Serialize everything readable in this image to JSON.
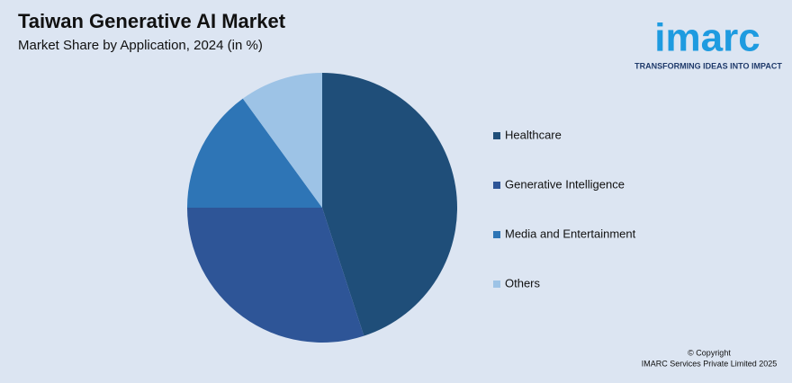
{
  "chart_data": {
    "type": "pie",
    "title": "Taiwan Generative AI Market",
    "subtitle": "Market Share by Application, 2024 (in %)",
    "categories": [
      "Healthcare",
      "Generative Intelligence",
      "Media and Entertainment",
      "Others"
    ],
    "values": [
      45,
      30,
      15,
      10
    ],
    "colors": [
      "#1f4e79",
      "#2e5597",
      "#2e75b6",
      "#9dc3e6"
    ],
    "legend": "right"
  },
  "logo": {
    "name": "imarc",
    "tagline": "TRANSFORMING IDEAS INTO IMPACT"
  },
  "footer": {
    "line1": "© Copyright",
    "line2": "IMARC Services Private Limited 2025"
  }
}
